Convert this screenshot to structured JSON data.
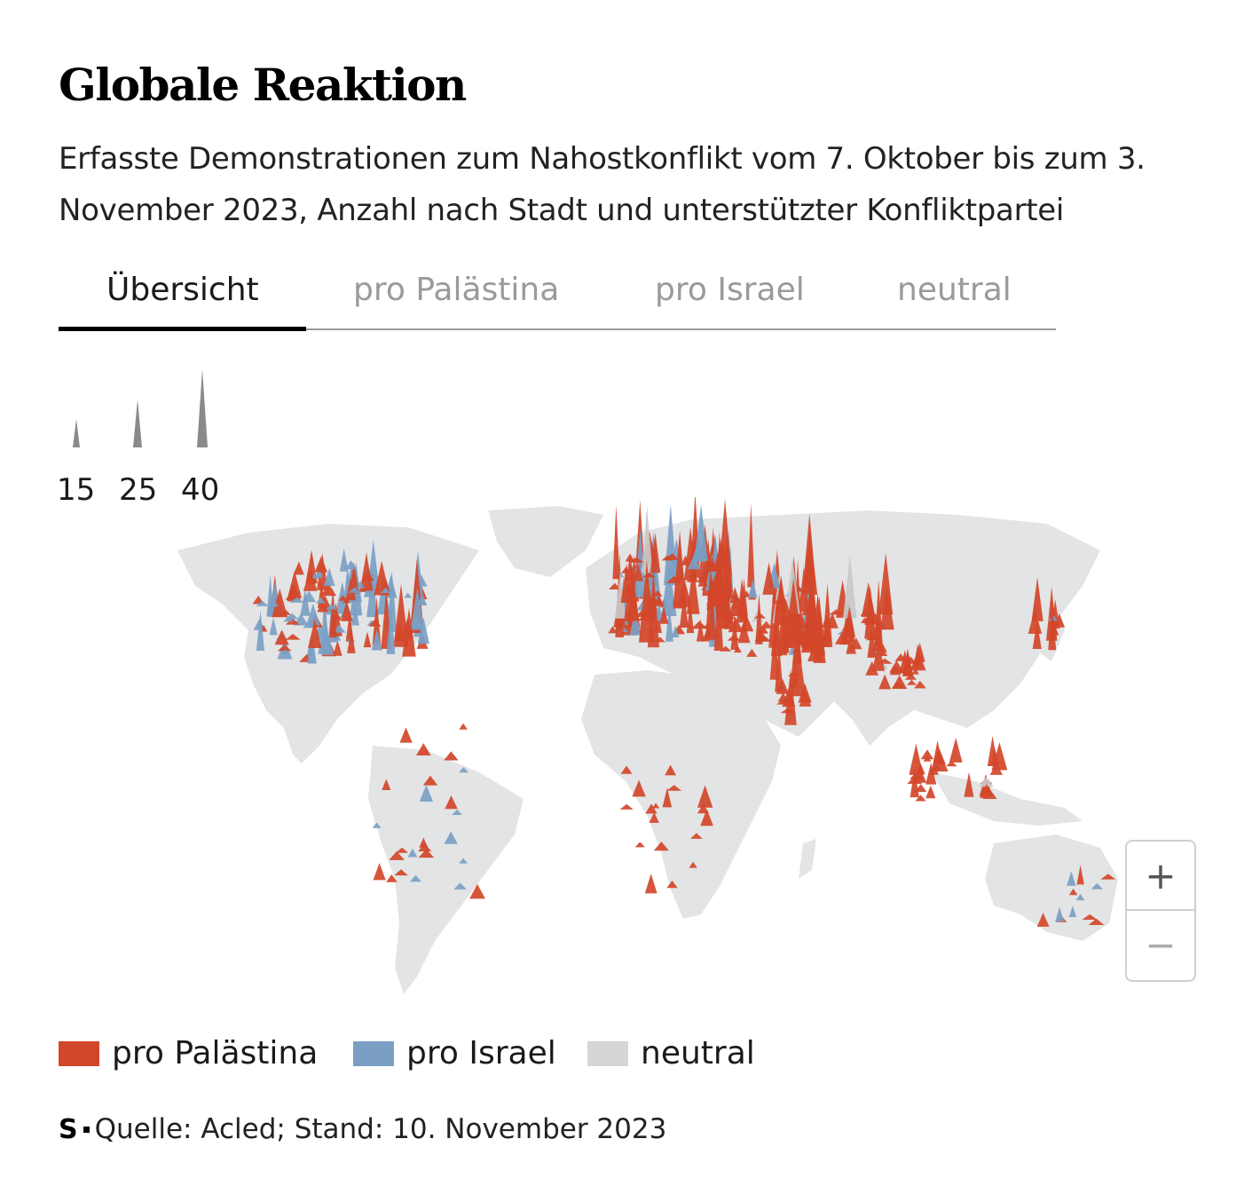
{
  "header": {
    "title": "Globale Reaktion",
    "subtitle": "Erfasste Demonstrationen zum Nahostkonflikt vom 7. Oktober bis zum 3. November 2023, Anzahl nach Stadt und unterstützter Konfliktpartei"
  },
  "tabs": [
    {
      "label": "Übersicht",
      "active": true
    },
    {
      "label": "pro Palästina",
      "active": false
    },
    {
      "label": "pro Israel",
      "active": false
    },
    {
      "label": "neutral",
      "active": false
    }
  ],
  "size_scale": {
    "values": [
      "15",
      "25",
      "40"
    ]
  },
  "zoom": {
    "in_label": "+",
    "out_label": "−"
  },
  "legend": [
    {
      "label": "pro Palästina",
      "color": "#d2462a"
    },
    {
      "label": "pro Israel",
      "color": "#7b9fc4"
    },
    {
      "label": "neutral",
      "color": "#d6d6d6"
    }
  ],
  "colors": {
    "pro_palestine": "#d2462a",
    "pro_israel": "#7b9fc4",
    "neutral": "#c9c9c9",
    "land": "#e3e4e5"
  },
  "source": {
    "logo": "S",
    "text": "Quelle: Acled; Stand: 10. November 2023"
  }
}
